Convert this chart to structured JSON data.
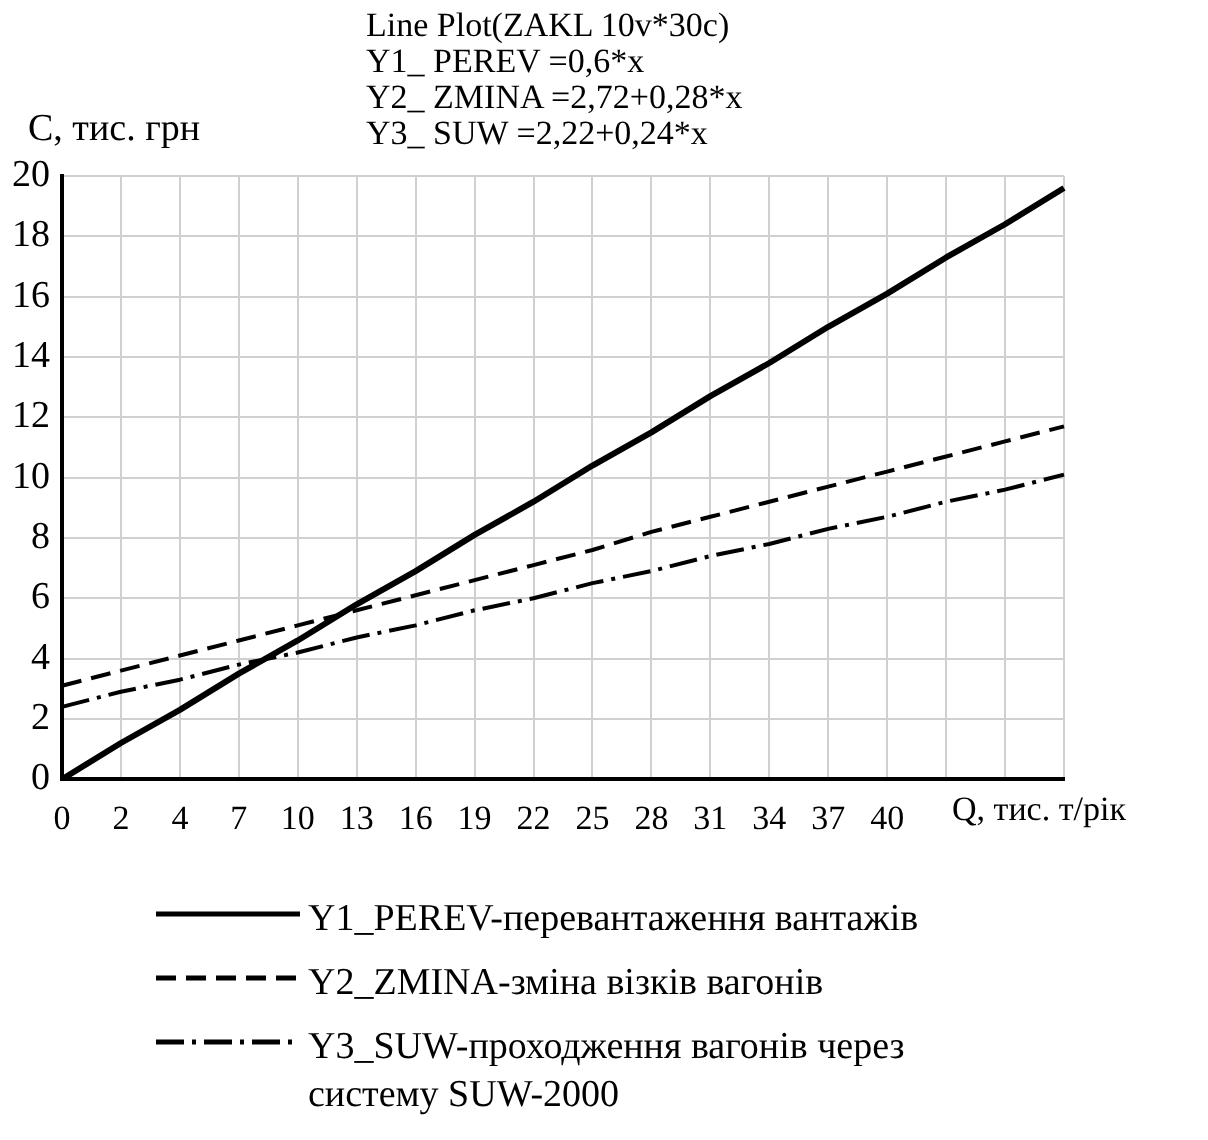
{
  "chart_data": {
    "type": "line",
    "title": "Line Plot(ZAKL 10v*30c)",
    "annotations": [
      "Y1_ PEREV =0,6*x",
      "Y2_ ZMINA =2,72+0,28*x",
      "Y3_ SUW =2,22+0,24*x"
    ],
    "xlabel": "Q, тис. т/рік",
    "ylabel": "C, тис. грн",
    "categories": [
      "0",
      "2",
      "4",
      "7",
      "10",
      "13",
      "16",
      "19",
      "22",
      "25",
      "28",
      "31",
      "34",
      "37",
      "40",
      null,
      null,
      null
    ],
    "series": [
      {
        "name": "Y1_PEREV-перевантаження вантажів",
        "color": "#000000",
        "line_style": "solid",
        "values": [
          0,
          1.2,
          2.3,
          3.5,
          4.6,
          5.8,
          6.9,
          8.1,
          9.2,
          10.4,
          11.5,
          12.7,
          13.8,
          15.0,
          16.1,
          17.3,
          18.4,
          19.6
        ]
      },
      {
        "name": "Y2_ZMINA-зміна візків вагонів",
        "color": "#000000",
        "line_style": "dashed",
        "values": [
          3.1,
          3.6,
          4.1,
          4.6,
          5.1,
          5.6,
          6.1,
          6.6,
          7.1,
          7.6,
          8.2,
          8.7,
          9.2,
          9.7,
          10.2,
          10.7,
          11.2,
          11.7
        ]
      },
      {
        "name": "Y3_SUW-проходження вагонів через систему SUW-2000",
        "color": "#000000",
        "line_style": "dashdot",
        "values": [
          2.4,
          2.9,
          3.3,
          3.8,
          4.2,
          4.7,
          5.1,
          5.6,
          6.0,
          6.5,
          6.9,
          7.4,
          7.8,
          8.3,
          8.7,
          9.2,
          9.6,
          10.1
        ]
      }
    ],
    "ylim": [
      0,
      20
    ],
    "yticks": [
      0,
      2,
      4,
      6,
      8,
      10,
      12,
      14,
      16,
      18,
      20
    ],
    "grid": true,
    "legend": "bottom",
    "marker": "none"
  }
}
